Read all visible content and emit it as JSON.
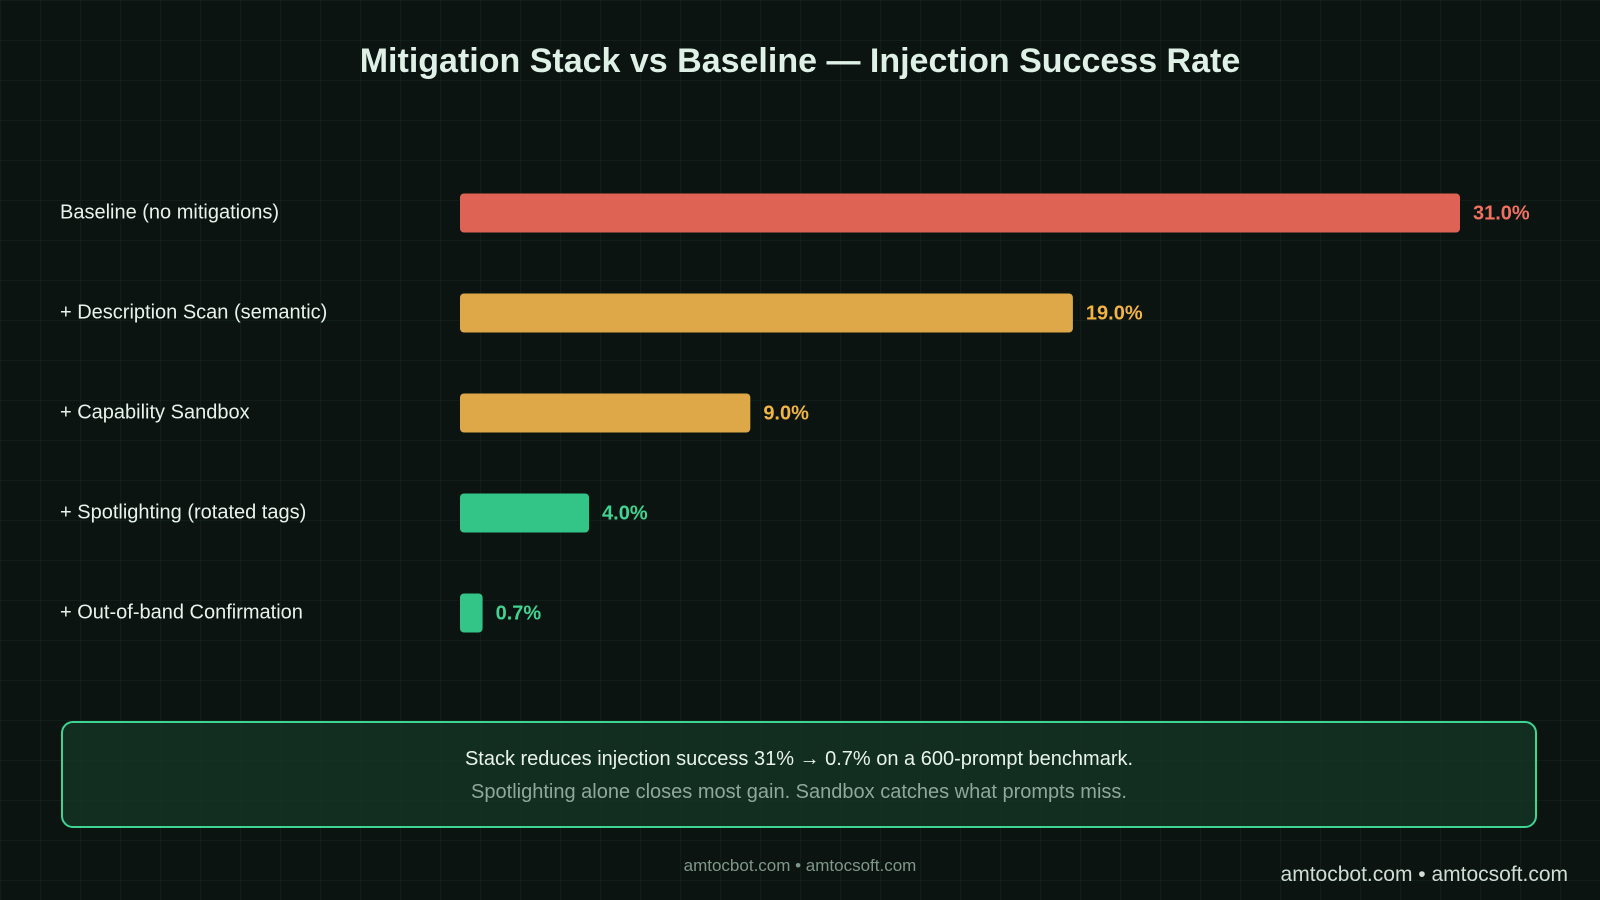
{
  "chart_data": {
    "type": "bar",
    "orientation": "horizontal",
    "title": "Mitigation Stack vs Baseline — Injection Success Rate",
    "categories": [
      "Baseline (no mitigations)",
      "+ Description Scan (semantic)",
      "+ Capability Sandbox",
      "+ Spotlighting (rotated tags)",
      "+ Out-of-band Confirmation"
    ],
    "values": [
      31.0,
      19.0,
      9.0,
      4.0,
      0.7
    ],
    "value_labels": [
      "31.0%",
      "19.0%",
      "9.0%",
      "4.0%",
      "0.7%"
    ],
    "colors": [
      "#df6354",
      "#dea748",
      "#dea748",
      "#33c487",
      "#33c487"
    ],
    "label_colors": [
      "#f0705f",
      "#f2b443",
      "#f2b443",
      "#3fd492",
      "#3fd492"
    ],
    "xlim": [
      0,
      31
    ]
  },
  "summary": {
    "line1": "Stack reduces injection success 31% → 0.7%  on a 600-prompt benchmark.",
    "line2": "Spotlighting alone closes most gain. Sandbox catches what prompts miss."
  },
  "footer": {
    "center": "amtocbot.com  •  amtocsoft.com",
    "corner": "amtocbot.com  •  amtocsoft.com"
  }
}
